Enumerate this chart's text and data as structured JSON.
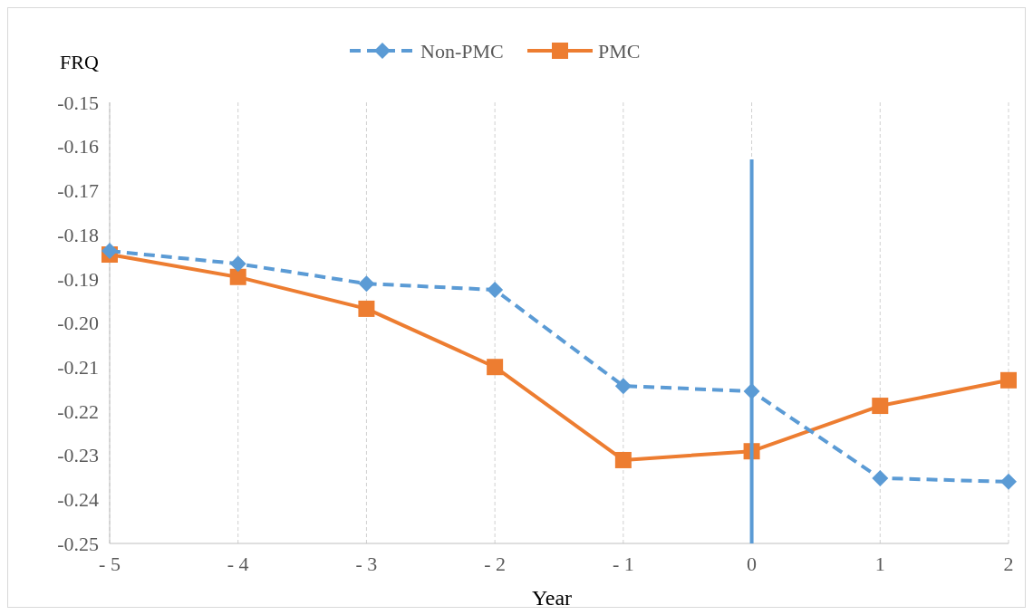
{
  "chart_data": {
    "type": "line",
    "xlabel": "Year",
    "ylabel": "FRQ",
    "x": [
      -5,
      -4,
      -3,
      -2,
      -1,
      0,
      1,
      2
    ],
    "xlim": [
      -5,
      2
    ],
    "xticks": [
      {
        "value": -5,
        "label": "- 5"
      },
      {
        "value": -4,
        "label": "- 4"
      },
      {
        "value": -3,
        "label": "- 3"
      },
      {
        "value": -2,
        "label": "- 2"
      },
      {
        "value": -1,
        "label": "- 1"
      },
      0,
      1,
      2
    ],
    "ylim": [
      -0.25,
      -0.15
    ],
    "yticks": [
      -0.25,
      -0.24,
      -0.23,
      -0.22,
      -0.21,
      {
        "value": -0.2,
        "label": "-0.20"
      },
      -0.19,
      -0.18,
      -0.17,
      -0.16,
      -0.15
    ],
    "series": [
      {
        "name": "Non-PMC",
        "color": "#5b9bd5",
        "values": [
          -0.1837,
          -0.1866,
          -0.1911,
          -0.1925,
          -0.2143,
          -0.2155,
          -0.2352,
          -0.236
        ],
        "marker": "diamond",
        "line_style": "dashed"
      },
      {
        "name": "PMC",
        "color": "#ed7d31",
        "values": [
          -0.1845,
          -0.1896,
          -0.1968,
          -0.21,
          -0.2311,
          -0.2291,
          -0.2188,
          -0.213
        ],
        "marker": "square",
        "line_style": "solid"
      }
    ],
    "ref_lines": [
      {
        "axis": "x",
        "value": 0,
        "color": "#5b9bd5"
      }
    ],
    "grid": "x",
    "legend": "top"
  }
}
